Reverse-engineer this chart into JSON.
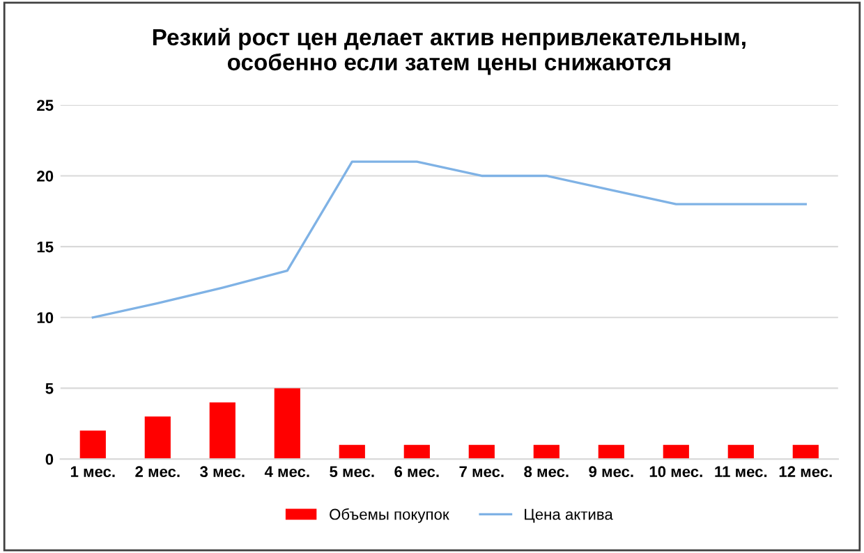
{
  "chart_data": {
    "type": "bar",
    "title": "Резкий рост цен делает актив непривлекательным,\nособенно если затем цены снижаются",
    "categories": [
      "1 мес.",
      "2 мес.",
      "3 мес.",
      "4 мес.",
      "5 мес.",
      "6 мес.",
      "7 мес.",
      "8 мес.",
      "9 мес.",
      "10 мес.",
      "11 мес.",
      "12 мес."
    ],
    "series": [
      {
        "name": "Объемы покупок",
        "color": "#ff0000",
        "values": [
          2,
          3,
          4,
          5,
          1,
          1,
          1,
          1,
          1,
          1,
          1,
          1
        ]
      },
      {
        "name": "Цена актива",
        "type": "line",
        "color": "#7fb2e5",
        "values": [
          10,
          11,
          12.1,
          13.3,
          21,
          21,
          20,
          20,
          19,
          18,
          18,
          18
        ]
      }
    ],
    "ylim": [
      0,
      25
    ],
    "yticks": [
      0,
      5,
      10,
      15,
      20,
      25
    ],
    "grid": "y",
    "legend": "bottom"
  }
}
